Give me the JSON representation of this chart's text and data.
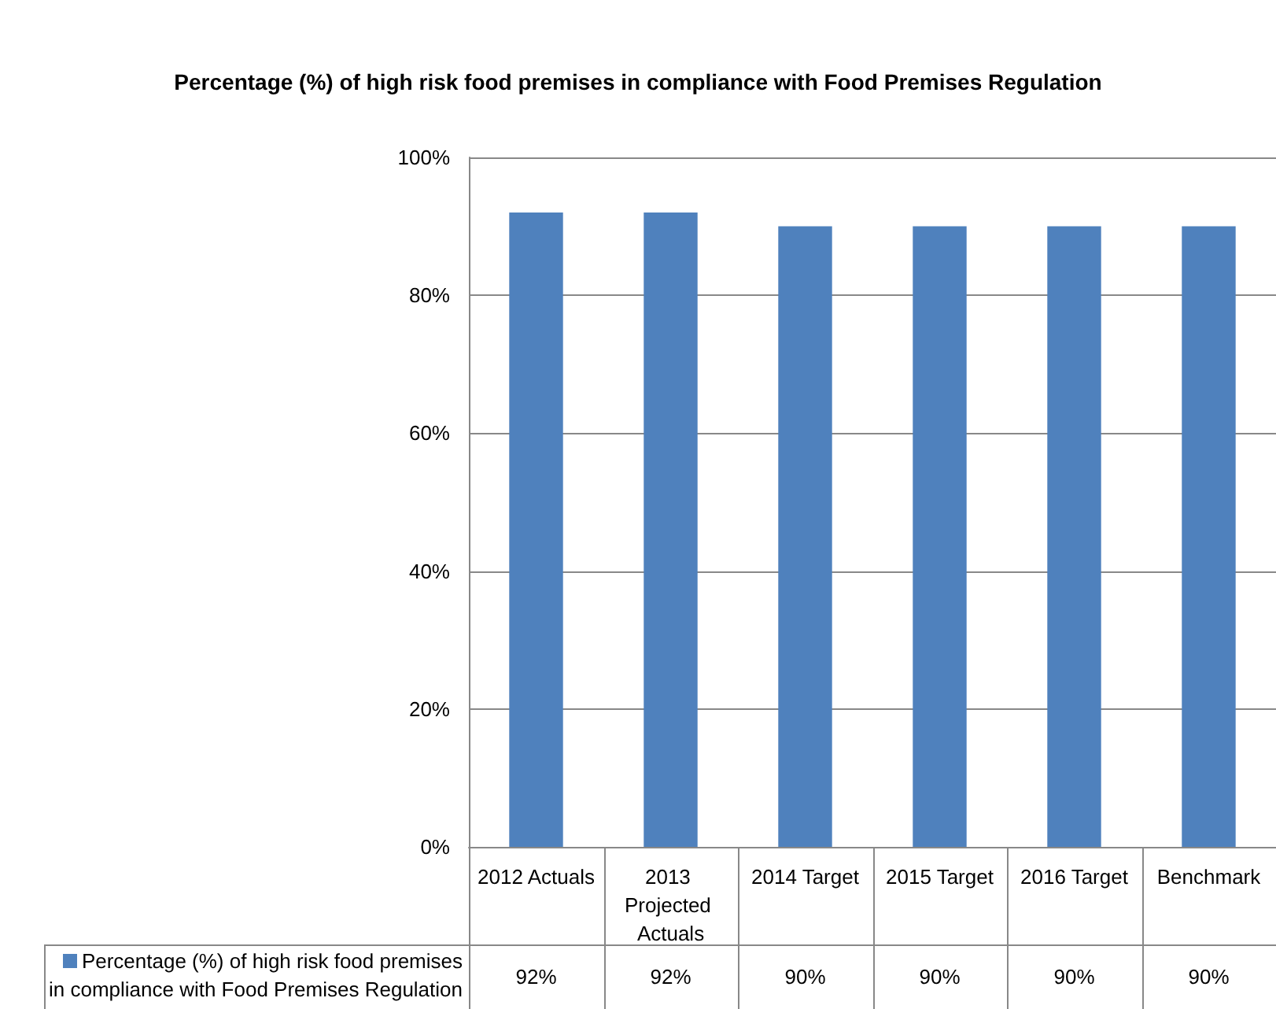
{
  "chart_data": {
    "type": "bar",
    "title": "Percentage (%) of high risk food premises in compliance with Food Premises Regulation",
    "categories": [
      "2012 Actuals",
      "2013 Projected Actuals",
      "2014 Target",
      "2015 Target",
      "2016 Target",
      "Benchmark"
    ],
    "series": [
      {
        "name": "Percentage (%) of high risk food premises in compliance with Food Premises Regulation",
        "color": "#4f81bd",
        "values": [
          92,
          92,
          90,
          90,
          90,
          90
        ],
        "value_labels": [
          "92%",
          "92%",
          "90%",
          "90%",
          "90%",
          "90%"
        ]
      }
    ],
    "ylim": [
      0,
      100
    ],
    "yticks": [
      {
        "value": 0,
        "label": "0%"
      },
      {
        "value": 20,
        "label": "20%"
      },
      {
        "value": 40,
        "label": "40%"
      },
      {
        "value": 60,
        "label": "60%"
      },
      {
        "value": 80,
        "label": "80%"
      },
      {
        "value": 100,
        "label": "100%"
      }
    ],
    "grid": "y"
  }
}
